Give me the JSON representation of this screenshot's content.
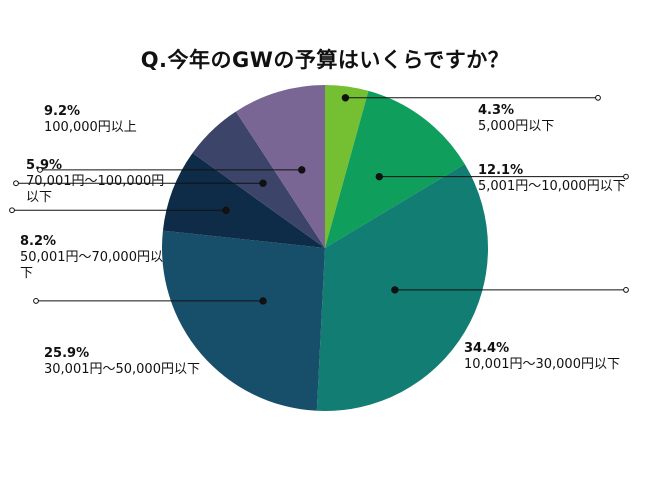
{
  "title": "Q.今年のGWの予算はいくらですか？",
  "chart_data": {
    "type": "pie",
    "title": "Q.今年のGWの予算はいくらですか？",
    "slices": [
      {
        "percent_label": "4.3%",
        "value": 4.3,
        "range": "5,000円以下",
        "color": "#74bf32"
      },
      {
        "percent_label": "12.1%",
        "value": 12.1,
        "range": "5,001円〜10,000円以下",
        "color": "#0f9e5b"
      },
      {
        "percent_label": "34.4%",
        "value": 34.4,
        "range": "10,001円〜30,000円以下",
        "color": "#127d72"
      },
      {
        "percent_label": "25.9%",
        "value": 25.9,
        "range": "30,001円〜50,000円以下",
        "color": "#174f6b"
      },
      {
        "percent_label": "8.2%",
        "value": 8.2,
        "range": "50,001円〜70,000円以下",
        "color": "#0e2c47"
      },
      {
        "percent_label": "5.9%",
        "value": 5.9,
        "range": "70,001円〜100,000円以下",
        "color": "#3c4569"
      },
      {
        "percent_label": "9.2%",
        "value": 9.2,
        "range": "100,000円以上",
        "color": "#7a6694"
      }
    ]
  }
}
